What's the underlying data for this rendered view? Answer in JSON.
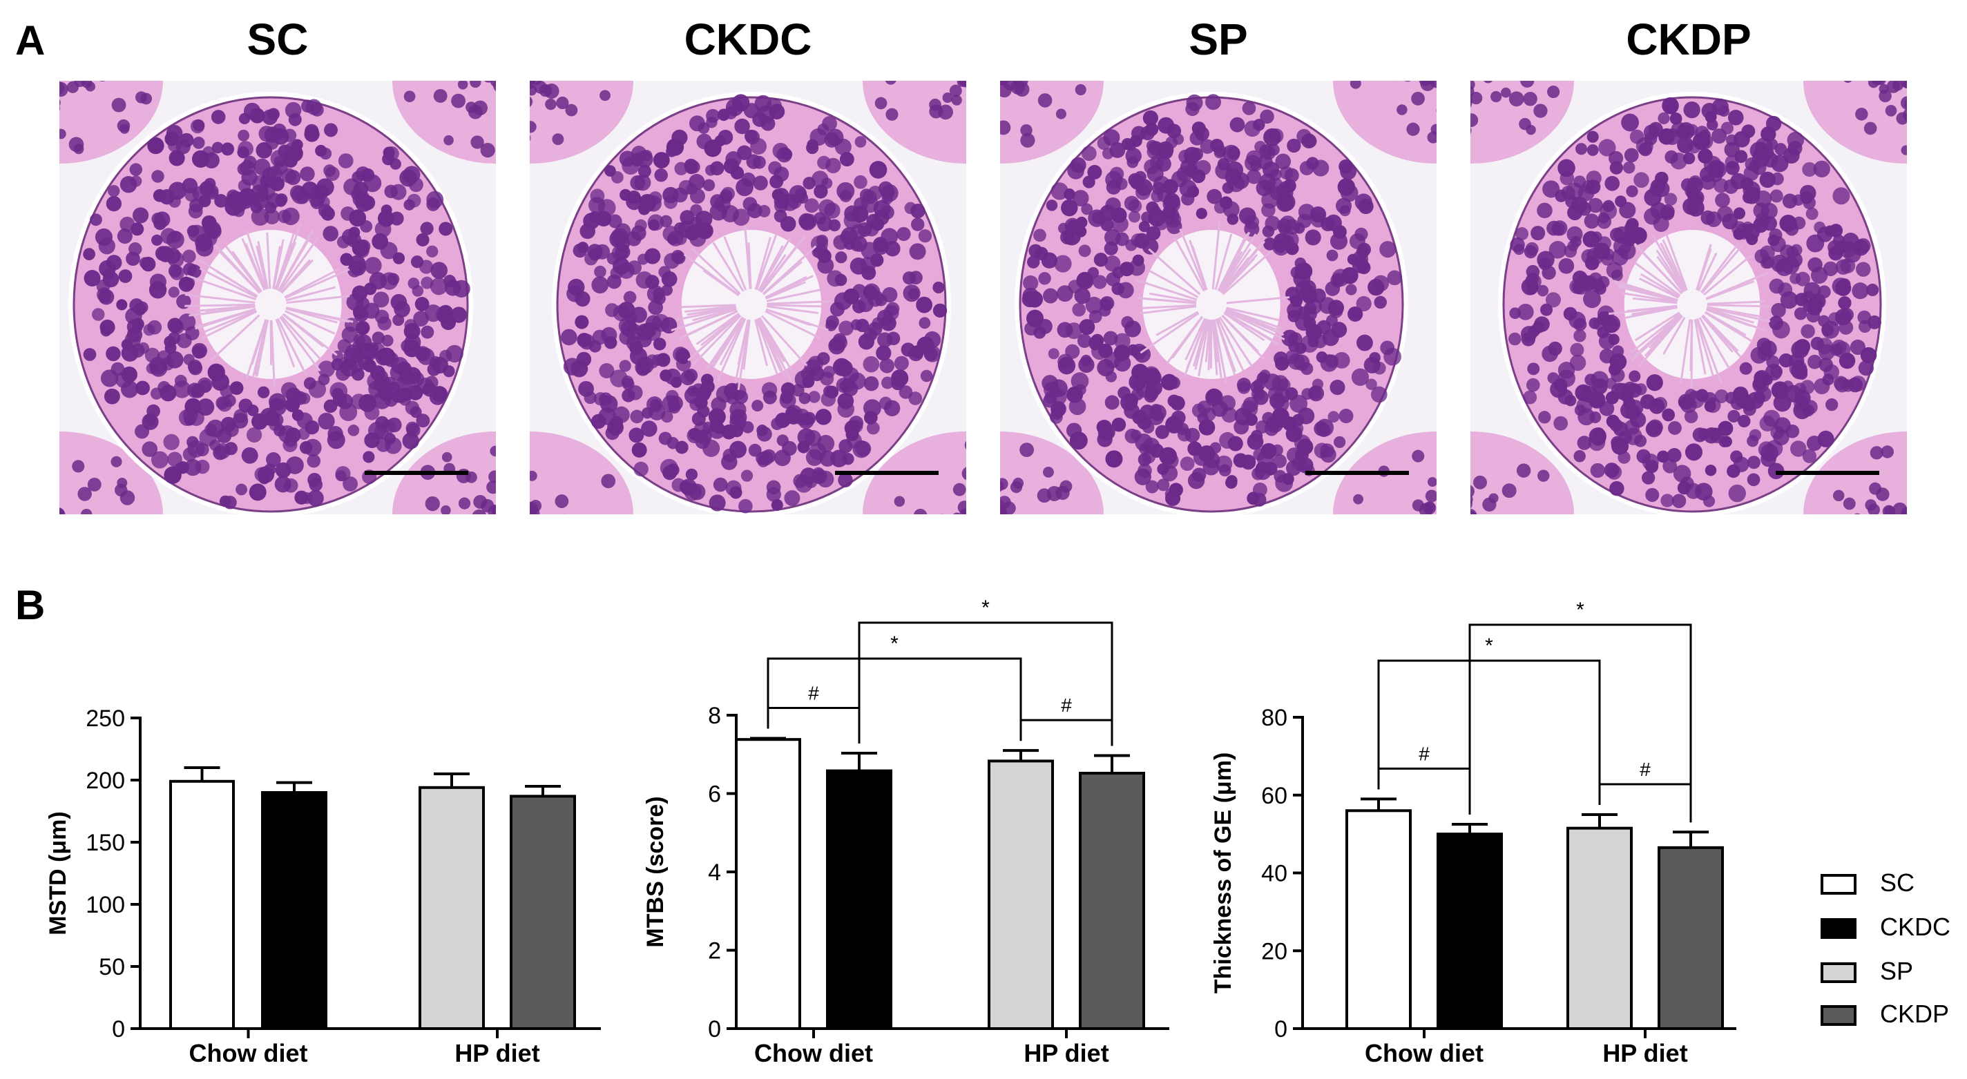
{
  "panel_labels": {
    "a": "A",
    "b": "B"
  },
  "micrographs": [
    {
      "title": "SC"
    },
    {
      "title": "CKDC"
    },
    {
      "title": "SP"
    },
    {
      "title": "CKDP"
    }
  ],
  "colors": {
    "SC": "#ffffff",
    "CKDC": "#000000",
    "SP": "#d4d4d4",
    "CKDP": "#5a5a5a",
    "stain_pink": "#e7a9d9",
    "stain_purple": "#6b2a8a",
    "lumen": "#f7f2f8",
    "background": "#f4f2f7"
  },
  "legend": [
    {
      "label": "SC",
      "color": "#ffffff"
    },
    {
      "label": "CKDC",
      "color": "#000000"
    },
    {
      "label": "SP",
      "color": "#d4d4d4"
    },
    {
      "label": "CKDP",
      "color": "#5a5a5a"
    }
  ],
  "chart_data": [
    {
      "type": "bar",
      "ylabel": "MSTD (μm)",
      "categories": [
        "Chow diet",
        "HP diet"
      ],
      "ylim": [
        0,
        250
      ],
      "yticks": [
        "0",
        "50",
        "100",
        "150",
        "200",
        "250"
      ],
      "series": [
        {
          "name": "SC",
          "values": [
            199,
            null
          ],
          "errors": [
            11,
            null
          ]
        },
        {
          "name": "CKDC",
          "values": [
            190,
            null
          ],
          "errors": [
            8,
            null
          ]
        },
        {
          "name": "SP",
          "values": [
            null,
            194
          ],
          "errors": [
            null,
            11
          ]
        },
        {
          "name": "CKDP",
          "values": [
            null,
            187
          ],
          "errors": [
            null,
            8
          ]
        }
      ],
      "annotations": []
    },
    {
      "type": "bar",
      "ylabel": "MTBS (score)",
      "categories": [
        "Chow diet",
        "HP diet"
      ],
      "ylim": [
        0,
        8
      ],
      "yticks": [
        "0",
        "2",
        "4",
        "6",
        "8"
      ],
      "series": [
        {
          "name": "SC",
          "values": [
            7.38,
            null
          ],
          "errors": [
            0.03,
            null
          ]
        },
        {
          "name": "CKDC",
          "values": [
            6.58,
            null
          ],
          "errors": [
            0.45,
            null
          ]
        },
        {
          "name": "SP",
          "values": [
            null,
            6.83
          ],
          "errors": [
            null,
            0.27
          ]
        },
        {
          "name": "CKDP",
          "values": [
            null,
            6.52
          ],
          "errors": [
            null,
            0.45
          ]
        }
      ],
      "annotations": [
        {
          "text": "#",
          "from": "SC",
          "to": "CKDC"
        },
        {
          "text": "#",
          "from": "SP",
          "to": "CKDP"
        },
        {
          "text": "*",
          "from": "SC",
          "to": "SP"
        },
        {
          "text": "*",
          "from": "CKDC",
          "to": "CKDP"
        }
      ]
    },
    {
      "type": "bar",
      "ylabel": "Thickness of GE (μm)",
      "categories": [
        "Chow diet",
        "HP diet"
      ],
      "ylim": [
        0,
        80
      ],
      "yticks": [
        "0",
        "20",
        "40",
        "60",
        "80"
      ],
      "series": [
        {
          "name": "SC",
          "values": [
            56,
            null
          ],
          "errors": [
            3,
            null
          ]
        },
        {
          "name": "CKDC",
          "values": [
            50,
            null
          ],
          "errors": [
            2.5,
            null
          ]
        },
        {
          "name": "SP",
          "values": [
            null,
            51.5
          ],
          "errors": [
            null,
            3.5
          ]
        },
        {
          "name": "CKDP",
          "values": [
            null,
            46.5
          ],
          "errors": [
            null,
            4
          ]
        }
      ],
      "annotations": [
        {
          "text": "#",
          "from": "SC",
          "to": "CKDC"
        },
        {
          "text": "#",
          "from": "SP",
          "to": "CKDP"
        },
        {
          "text": "*",
          "from": "SC",
          "to": "SP"
        },
        {
          "text": "*",
          "from": "CKDC",
          "to": "CKDP"
        }
      ]
    }
  ]
}
